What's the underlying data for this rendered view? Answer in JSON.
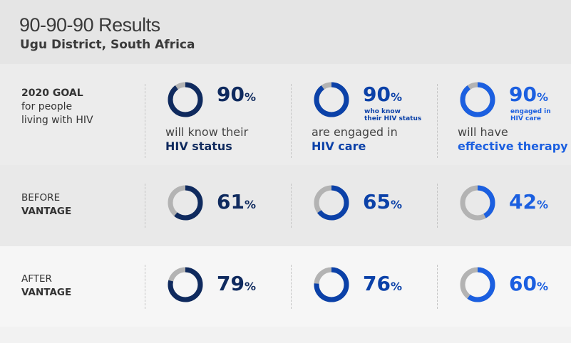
{
  "header": {
    "title": "90-90-90 Results",
    "subtitle": "Ugu District, South Africa"
  },
  "colors": {
    "col1": "#0f2a5e",
    "col2": "#0b41a8",
    "col3": "#1b5fe0",
    "track": "#b3b3b3"
  },
  "rows": [
    {
      "label_bold": "2020 GOAL",
      "label_rest": [
        "for people",
        "living with HIV"
      ],
      "cells": [
        {
          "value": 90,
          "pct": "90",
          "sign": "%",
          "desc1": "will know their",
          "desc2": "HIV status"
        },
        {
          "value": 90,
          "pct": "90",
          "sign": "%",
          "note": [
            "who know",
            "their HIV status"
          ],
          "desc1": "are engaged in",
          "desc2": "HIV care"
        },
        {
          "value": 90,
          "pct": "90",
          "sign": "%",
          "note": [
            "engaged in",
            "HIV care"
          ],
          "desc1": "will have",
          "desc2": "effective therapy"
        }
      ]
    },
    {
      "label_lines": [
        "BEFORE",
        "VANTAGE"
      ],
      "cells": [
        {
          "value": 61,
          "pct": "61",
          "sign": "%"
        },
        {
          "value": 65,
          "pct": "65",
          "sign": "%"
        },
        {
          "value": 42,
          "pct": "42",
          "sign": "%"
        }
      ]
    },
    {
      "label_lines": [
        "AFTER",
        "VANTAGE"
      ],
      "cells": [
        {
          "value": 79,
          "pct": "79",
          "sign": "%"
        },
        {
          "value": 76,
          "pct": "76",
          "sign": "%"
        },
        {
          "value": 60,
          "pct": "60",
          "sign": "%"
        }
      ]
    }
  ]
}
